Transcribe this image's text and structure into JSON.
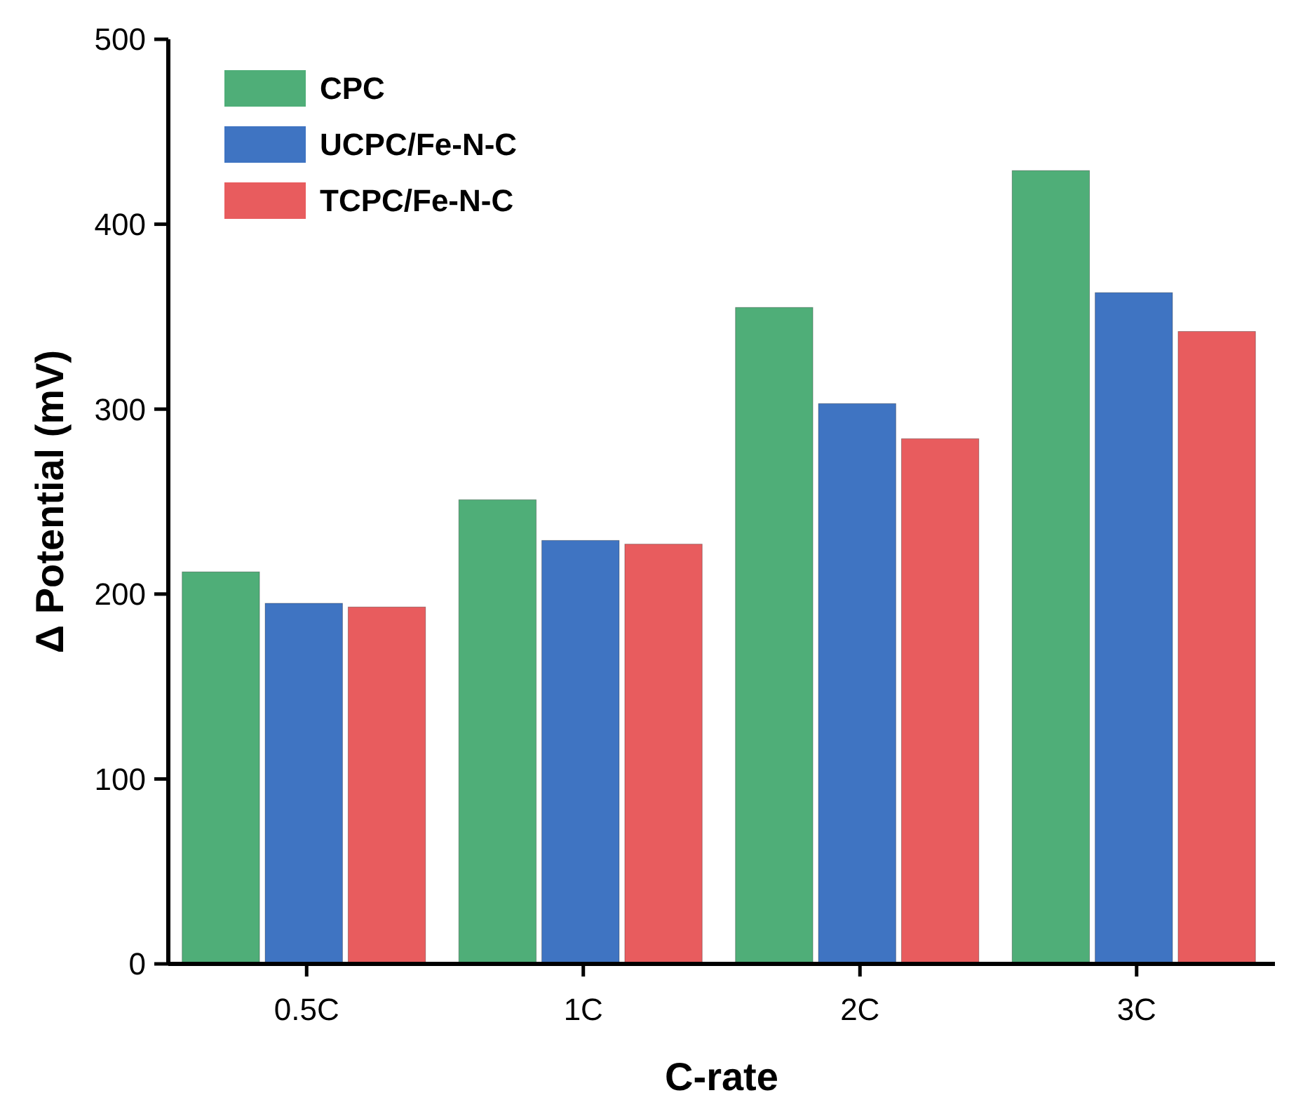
{
  "chart_data": {
    "type": "bar",
    "xlabel": "C-rate",
    "ylabel": "Δ Potential (mV)",
    "categories": [
      "0.5C",
      "1C",
      "2C",
      "3C"
    ],
    "series": [
      {
        "name": "CPC",
        "color": "#4fae78",
        "values": [
          212,
          251,
          355,
          429
        ]
      },
      {
        "name": "UCPC/Fe-N-C",
        "color": "#3f74c2",
        "values": [
          195,
          229,
          303,
          363
        ]
      },
      {
        "name": "TCPC/Fe-N-C",
        "color": "#e85c5e",
        "values": [
          193,
          227,
          284,
          342
        ]
      }
    ],
    "ylim": [
      0,
      500
    ],
    "yticks": [
      0,
      100,
      200,
      300,
      400,
      500
    ],
    "grid": false,
    "legend": "top left"
  }
}
